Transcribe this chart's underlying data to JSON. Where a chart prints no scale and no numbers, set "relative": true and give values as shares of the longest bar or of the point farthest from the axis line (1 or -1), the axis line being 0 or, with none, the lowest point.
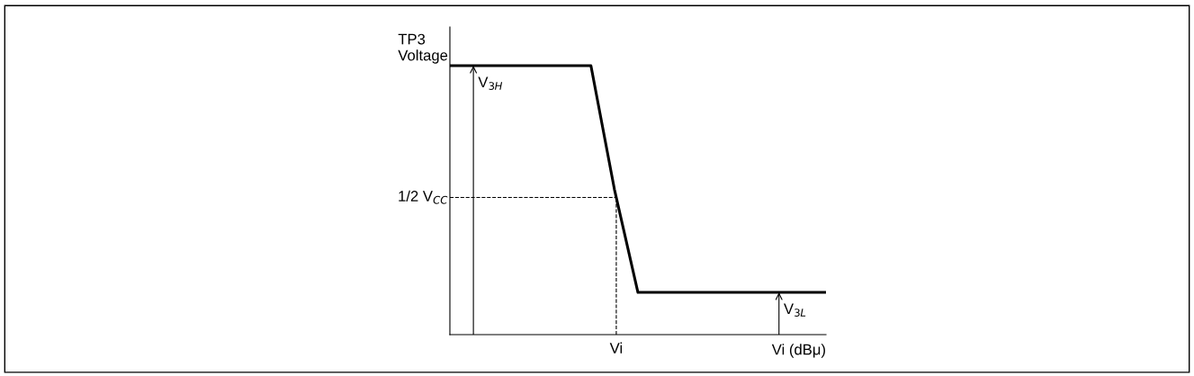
{
  "chart_data": {
    "type": "line",
    "relative": true,
    "xlabel": "Vi (dBμ)",
    "ylabel": "TP3\nVoltage",
    "categories": [
      null,
      null,
      null,
      null,
      null,
      null,
      null,
      null,
      null,
      null,
      null,
      null,
      null,
      null,
      null,
      null,
      null
    ],
    "series": [
      {
        "color": "#000000",
        "values": [
          1,
          1,
          1,
          1,
          1,
          1,
          1,
          0.54,
          0.157,
          0.157,
          0.157,
          0.157,
          0.157,
          0.157,
          0.157,
          0.157,
          0.157
        ]
      }
    ],
    "ref_lines": [
      {
        "axis": "y",
        "value": 0.51,
        "label": "1/2 V$_{CC}$",
        "line_style": "dashed",
        "color": "#000000"
      }
    ],
    "annotations": [
      {
        "text": "V$_{3H}$",
        "y": 1
      },
      {
        "text": "V$_{3L}$",
        "y": 0.157
      },
      "Vi"
    ],
    "marker": "none",
    "line_style": "solid",
    "grid": false,
    "legend": false
  }
}
